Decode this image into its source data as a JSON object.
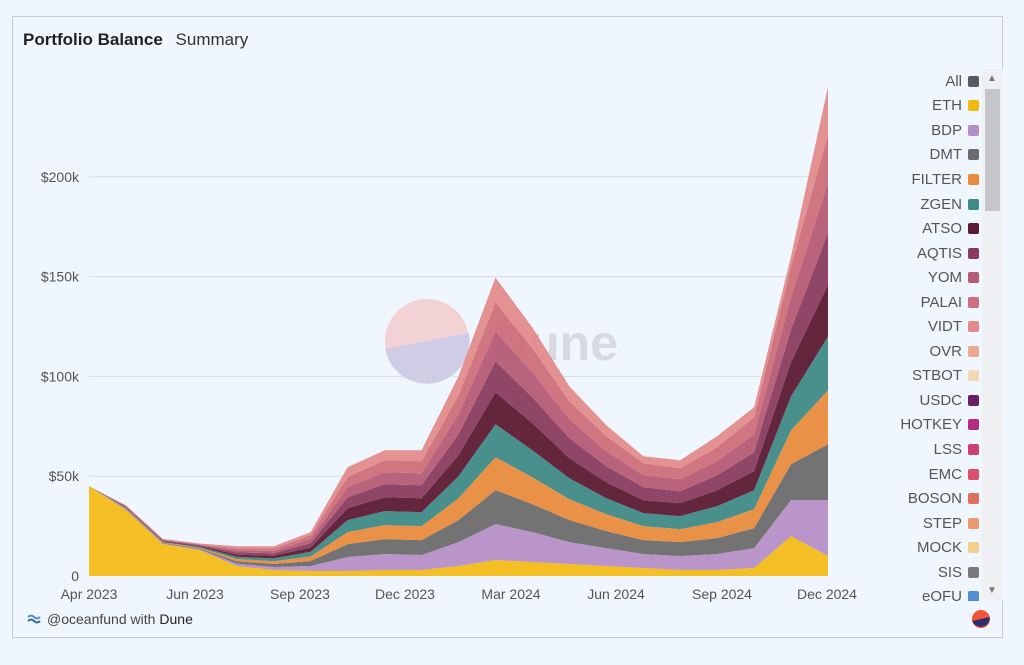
{
  "header": {
    "title": "Portfolio Balance",
    "subtitle": "Summary"
  },
  "watermark": {
    "text": "Dune"
  },
  "footer": {
    "handle": "@oceanfund with",
    "brand": "Dune",
    "icons": [
      "wave-icon",
      "dune-badge-icon"
    ]
  },
  "chart_data": {
    "type": "area",
    "stacked": true,
    "title": "Portfolio Balance",
    "xlabel": "",
    "ylabel": "",
    "x_ticks": [
      "Apr 2023",
      "Jun 2023",
      "Sep 2023",
      "Dec 2023",
      "Mar 2024",
      "Jun 2024",
      "Sep 2024",
      "Dec 2024"
    ],
    "y_ticks": [
      "0",
      "$50k",
      "$100k",
      "$150k",
      "$200k"
    ],
    "ylim": [
      0,
      250000
    ],
    "x": [
      "2023-04",
      "2023-05",
      "2023-06",
      "2023-07",
      "2023-08",
      "2023-09",
      "2023-10",
      "2023-11",
      "2023-12",
      "2024-01",
      "2024-02",
      "2024-03",
      "2024-04",
      "2024-05",
      "2024-06",
      "2024-07",
      "2024-08",
      "2024-09",
      "2024-10",
      "2024-11",
      "2024-12"
    ],
    "total": [
      45000,
      35000,
      18000,
      16000,
      15000,
      15000,
      22000,
      55000,
      63000,
      62000,
      100000,
      150000,
      125000,
      95000,
      75000,
      60000,
      58000,
      70000,
      85000,
      160000,
      245000
    ],
    "series": [
      {
        "name": "ETH",
        "color": "#f2bc18",
        "values": [
          45000,
          33000,
          16000,
          13000,
          5000,
          3000,
          2500,
          2500,
          3000,
          3000,
          5000,
          8000,
          7000,
          6000,
          5000,
          4000,
          3000,
          3000,
          4000,
          20000,
          10000
        ]
      },
      {
        "name": "BDP",
        "color": "#b58fc7",
        "values": [
          0,
          300,
          300,
          400,
          1200,
          1500,
          2500,
          7000,
          8000,
          7500,
          12000,
          18000,
          15000,
          11000,
          9000,
          7000,
          7000,
          8000,
          10000,
          18000,
          28000
        ]
      },
      {
        "name": "DMT",
        "color": "#6b6b6b",
        "values": [
          0,
          300,
          300,
          400,
          1200,
          1500,
          2500,
          6500,
          7500,
          7500,
          11000,
          17000,
          14000,
          11000,
          8500,
          7000,
          7000,
          8000,
          10000,
          18000,
          28000
        ]
      },
      {
        "name": "FILTER",
        "color": "#e88b3c",
        "values": [
          0,
          300,
          300,
          400,
          1100,
          1400,
          2300,
          6000,
          7000,
          7000,
          11000,
          16500,
          13500,
          10500,
          8500,
          7000,
          6500,
          8000,
          9500,
          17000,
          27000
        ]
      },
      {
        "name": "ZGEN",
        "color": "#3f8a86",
        "values": [
          0,
          300,
          300,
          400,
          1100,
          1400,
          2300,
          6000,
          7000,
          7000,
          11000,
          16500,
          13500,
          10500,
          8000,
          6500,
          6500,
          8000,
          9500,
          17000,
          27000
        ]
      },
      {
        "name": "ATSO",
        "color": "#5c1a31",
        "values": [
          0,
          300,
          300,
          400,
          1100,
          1300,
          2200,
          6000,
          7000,
          7000,
          10500,
          16000,
          13500,
          10000,
          8000,
          6500,
          6500,
          8000,
          9500,
          17000,
          26000
        ]
      },
      {
        "name": "AQTIS",
        "color": "#8a3c5e",
        "values": [
          0,
          300,
          300,
          400,
          1100,
          1300,
          2200,
          5500,
          6500,
          6500,
          10500,
          15500,
          13000,
          10000,
          8000,
          6500,
          6000,
          7500,
          9500,
          16500,
          26000
        ]
      },
      {
        "name": "YOM",
        "color": "#b55c75",
        "values": [
          0,
          200,
          300,
          300,
          1100,
          1200,
          2000,
          5000,
          6000,
          6000,
          10000,
          15000,
          12500,
          9500,
          7500,
          6000,
          6000,
          7000,
          9000,
          16000,
          25000
        ]
      },
      {
        "name": "PALAI",
        "color": "#cc6f7a",
        "values": [
          0,
          200,
          300,
          300,
          1000,
          1200,
          2000,
          5000,
          6000,
          6000,
          9500,
          14500,
          12000,
          9000,
          7500,
          6000,
          5500,
          7000,
          8500,
          15500,
          24000
        ]
      },
      {
        "name": "VIDT",
        "color": "#e28b8b",
        "values": [
          0,
          200,
          200,
          300,
          1000,
          1100,
          1500,
          5000,
          5000,
          5500,
          9500,
          12500,
          10500,
          7500,
          5500,
          3500,
          4000,
          5500,
          5000,
          5000,
          24000
        ]
      }
    ],
    "legend": [
      "All",
      "ETH",
      "BDP",
      "DMT",
      "FILTER",
      "ZGEN",
      "ATSO",
      "AQTIS",
      "YOM",
      "PALAI",
      "VIDT",
      "OVR",
      "STBOT",
      "USDC",
      "HOTKEY",
      "LSS",
      "EMC",
      "BOSON",
      "STEP",
      "MOCK",
      "SIS",
      "eOFU"
    ],
    "legend_colors": [
      "#555b61",
      "#f2b90f",
      "#b58fc7",
      "#6b6b6b",
      "#e88b3c",
      "#3f8a86",
      "#5c1a31",
      "#8a3c5e",
      "#b55c75",
      "#cc6f7a",
      "#e28b8b",
      "#eca88f",
      "#f1d9b8",
      "#6b1e6a",
      "#b32c86",
      "#cf3f72",
      "#dc4f68",
      "#e06f5d",
      "#eb9a6f",
      "#f2cf8a",
      "#7a7a7a",
      "#4f8fcf"
    ],
    "legend_position": "right",
    "grid": "horizontal"
  }
}
